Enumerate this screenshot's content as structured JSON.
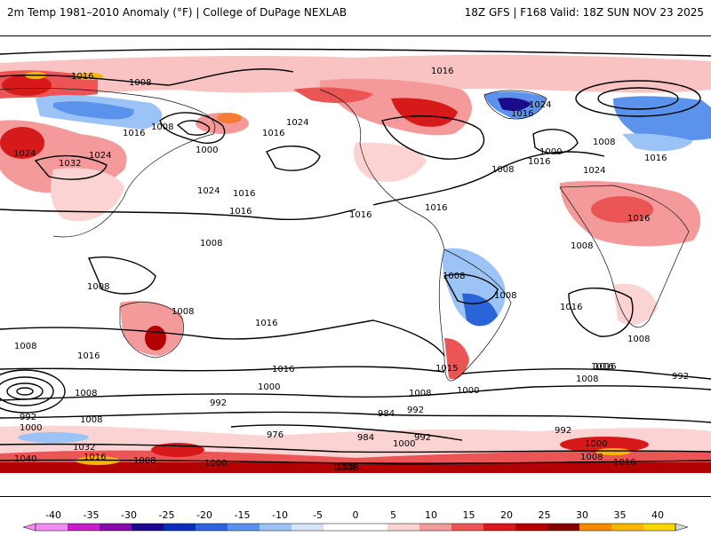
{
  "header": {
    "left": "2m Temp 1981–2010 Anomaly (°F) | College of DuPage NEXLAB",
    "right": "18Z GFS | F168 Valid: 18Z SUN NOV 23 2025"
  },
  "colorbar": {
    "ticks": [
      "-40",
      "-35",
      "-30",
      "-25",
      "-20",
      "-15",
      "-10",
      "-5",
      "0",
      "5",
      "10",
      "15",
      "20",
      "25",
      "30",
      "35",
      "40"
    ],
    "colors": [
      "#f58cf5",
      "#c71fc7",
      "#8a0aa8",
      "#1c0a8c",
      "#0d2eb8",
      "#2b63d9",
      "#5b93ec",
      "#9cc3f5",
      "#d5e6fb",
      "#ffffff",
      "#ffffff",
      "#fbd3d3",
      "#f59a9a",
      "#ec5555",
      "#d61a1a",
      "#b30000",
      "#840000",
      "#f58c00",
      "#fcb400",
      "#ffd700"
    ]
  },
  "isobars": [
    {
      "label": "1016"
    },
    {
      "label": "1008"
    },
    {
      "label": "1008"
    },
    {
      "label": "1016"
    },
    {
      "label": "1016"
    },
    {
      "label": "1008"
    },
    {
      "label": "1024"
    },
    {
      "label": "1016"
    },
    {
      "label": "1024"
    },
    {
      "label": "1032"
    },
    {
      "label": "1024"
    },
    {
      "label": "1000"
    },
    {
      "label": "1016"
    },
    {
      "label": "1024"
    },
    {
      "label": "1016"
    },
    {
      "label": "1008"
    },
    {
      "label": "1016"
    },
    {
      "label": "1016"
    },
    {
      "label": "1008"
    },
    {
      "label": "1008"
    },
    {
      "label": "1016"
    },
    {
      "label": "1008"
    },
    {
      "label": "1008"
    },
    {
      "label": "1016"
    },
    {
      "label": "1008"
    },
    {
      "label": "1016"
    },
    {
      "label": "1016"
    },
    {
      "label": "1000"
    },
    {
      "label": "992"
    },
    {
      "label": "984"
    },
    {
      "label": "992"
    },
    {
      "label": "976"
    },
    {
      "label": "984"
    },
    {
      "label": "1000"
    },
    {
      "label": "992"
    },
    {
      "label": "1008"
    },
    {
      "label": "992"
    },
    {
      "label": "1000"
    },
    {
      "label": "1008"
    },
    {
      "label": "1032"
    },
    {
      "label": "1040"
    },
    {
      "label": "1016"
    },
    {
      "label": "1008"
    },
    {
      "label": "1000"
    },
    {
      "label": "1008"
    },
    {
      "label": "1015"
    },
    {
      "label": "1000"
    },
    {
      "label": "1016"
    },
    {
      "label": "1008"
    },
    {
      "label": "992"
    },
    {
      "label": "992"
    },
    {
      "label": "1000"
    },
    {
      "label": "1008"
    },
    {
      "label": "1016"
    },
    {
      "label": "1016"
    },
    {
      "label": "1000"
    },
    {
      "label": "1016"
    },
    {
      "label": "1024"
    },
    {
      "label": "1016"
    },
    {
      "label": "1008"
    },
    {
      "label": "1024"
    },
    {
      "label": "1008"
    },
    {
      "label": "1016"
    },
    {
      "label": "1008"
    },
    {
      "label": "1016"
    },
    {
      "label": "1008"
    },
    {
      "label": "1008"
    }
  ]
}
